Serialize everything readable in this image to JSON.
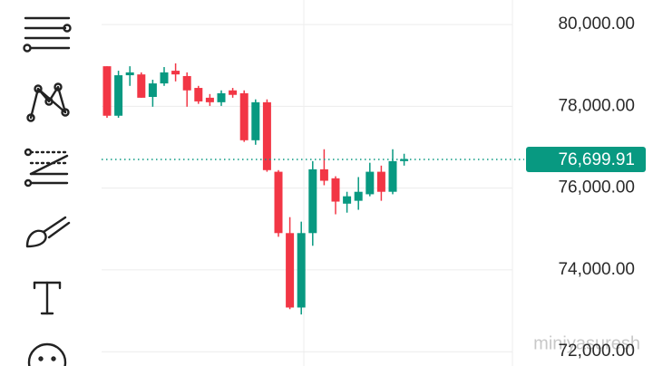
{
  "chart_data": {
    "type": "candlestick",
    "open": [
      78980,
      77770,
      78760,
      78780,
      78230,
      78560,
      78870,
      78740,
      78450,
      78210,
      78100,
      78390,
      78320,
      77170,
      78100,
      76400,
      74900,
      73080,
      74900,
      76460,
      76240,
      75620,
      75690,
      75850,
      76400,
      75910,
      76660
    ],
    "high": [
      78980,
      78870,
      78980,
      78830,
      78650,
      78960,
      79050,
      78830,
      78500,
      78300,
      78390,
      78450,
      78390,
      78170,
      78170,
      76440,
      75290,
      75180,
      76660,
      76950,
      76290,
      75910,
      76270,
      76620,
      76550,
      76950,
      76840
    ],
    "low": [
      77720,
      77720,
      78500,
      78210,
      77990,
      78500,
      78610,
      77990,
      78060,
      78010,
      78010,
      78210,
      77130,
      77060,
      76400,
      74810,
      73040,
      72910,
      74590,
      76070,
      75360,
      75400,
      75470,
      75800,
      75690,
      75850,
      76550
    ],
    "close": [
      77770,
      78760,
      78830,
      78210,
      78560,
      78830,
      78780,
      78390,
      78120,
      78100,
      78320,
      78280,
      77170,
      78100,
      76440,
      74900,
      73080,
      74900,
      76460,
      76180,
      75670,
      75800,
      75910,
      76400,
      75910,
      76660,
      76710
    ],
    "up_color": "#089981",
    "down_color": "#f23645",
    "ylim": [
      71650,
      80600
    ],
    "yticks": [
      {
        "value": 72000,
        "label": "72,000.00"
      },
      {
        "value": 74000,
        "label": "74,000.00"
      },
      {
        "value": 76000,
        "label": "76,000.00"
      },
      {
        "value": 78000,
        "label": "78,000.00"
      },
      {
        "value": 80000,
        "label": "80,000.00"
      }
    ],
    "grid": true,
    "last_price": {
      "value": 76699.91,
      "label": "76,699.91"
    },
    "watermark": "miniyasuresh"
  }
}
